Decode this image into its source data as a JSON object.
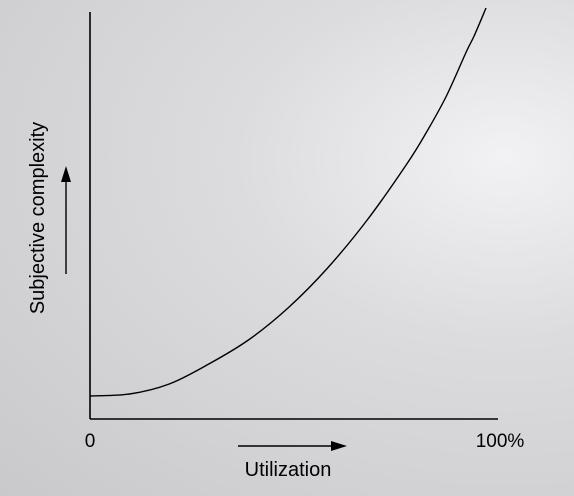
{
  "chart_data": {
    "type": "line",
    "title": "",
    "xlabel": "Utilization",
    "ylabel": "Subjective complexity",
    "x_tick_labels": [
      "0",
      "100%"
    ],
    "xlim": [
      0,
      100
    ],
    "ylim": [
      0,
      1
    ],
    "grid": false,
    "legend": "none",
    "series": [
      {
        "x": [
          0,
          10,
          20,
          30,
          40,
          50,
          60,
          70,
          80,
          85,
          90,
          95,
          97,
          100
        ],
        "y": [
          0.03,
          0.035,
          0.06,
          0.11,
          0.17,
          0.25,
          0.35,
          0.47,
          0.61,
          0.69,
          0.78,
          0.89,
          0.93,
          1.0
        ]
      }
    ]
  }
}
